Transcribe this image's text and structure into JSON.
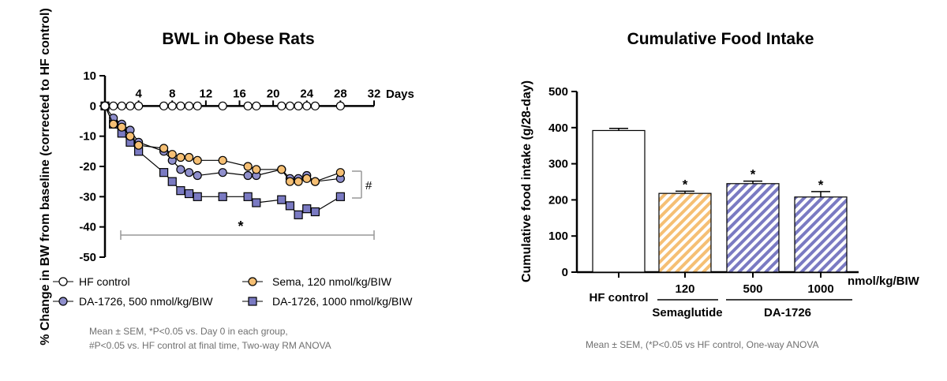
{
  "chart_data": [
    {
      "type": "line",
      "title": "BWL in Obese Rats",
      "ylabel": "% Change in BW from baseline (corrected to HF control)",
      "xlabel": "Days",
      "xlim": [
        0,
        32
      ],
      "ylim": [
        -50,
        10
      ],
      "x_ticks": [
        "4",
        "8",
        "12",
        "16",
        "20",
        "24",
        "28",
        "32"
      ],
      "x_tick_values": [
        4,
        8,
        12,
        16,
        20,
        24,
        28,
        32
      ],
      "y_ticks": [
        "10",
        "0",
        "-10",
        "-20",
        "-30",
        "-40",
        "-50"
      ],
      "y_tick_values": [
        10,
        0,
        -10,
        -20,
        -30,
        -40,
        -50
      ],
      "series": [
        {
          "name": "HF control",
          "marker": "circle",
          "color": "#ffffff",
          "x": [
            0,
            1,
            2,
            3,
            4,
            7,
            8,
            9,
            10,
            11,
            14,
            17,
            18,
            21,
            22,
            23,
            24,
            25,
            28
          ],
          "values": [
            0,
            0,
            0,
            0,
            0,
            0,
            0,
            0,
            0,
            0,
            0,
            0,
            0,
            0,
            0,
            0,
            0,
            0,
            0
          ]
        },
        {
          "name": "Sema, 120 nmol/kg/BIW",
          "marker": "circle",
          "color": "#f5bf74",
          "x": [
            0,
            1,
            2,
            3,
            4,
            7,
            8,
            9,
            10,
            11,
            14,
            17,
            18,
            21,
            22,
            23,
            24,
            25,
            28
          ],
          "values": [
            0,
            -6,
            -7,
            -10,
            -13,
            -14,
            -16,
            -17,
            -17,
            -18,
            -18,
            -20,
            -21,
            -21,
            -25,
            -25,
            -24,
            -25,
            -22
          ]
        },
        {
          "name": "DA-1726, 500 nmol/kg/BIW",
          "marker": "circle",
          "color": "#8f8fcc",
          "x": [
            0,
            1,
            2,
            3,
            4,
            7,
            8,
            9,
            10,
            11,
            14,
            17,
            18,
            21,
            22,
            23,
            24,
            25,
            28
          ],
          "values": [
            0,
            -4,
            -6,
            -8,
            -12,
            -15,
            -18,
            -21,
            -22,
            -23,
            -22,
            -23,
            -23,
            -21,
            -24,
            -24,
            -23,
            -25,
            -24
          ]
        },
        {
          "name": "DA-1726, 1000 nmol/kg/BIW",
          "marker": "square",
          "color": "#7a7ac2",
          "x": [
            0,
            1,
            2,
            3,
            4,
            7,
            8,
            9,
            10,
            11,
            14,
            17,
            18,
            21,
            22,
            23,
            24,
            25,
            28
          ],
          "values": [
            0,
            -6,
            -9,
            -12,
            -15,
            -22,
            -25,
            -28,
            -29,
            -30,
            -30,
            -30,
            -32,
            -31,
            -33,
            -36,
            -34,
            -35,
            -30
          ]
        }
      ],
      "annotations": [
        "*",
        "#"
      ],
      "footnote_lines": [
        "Mean ± SEM, *P<0.05 vs. Day 0 in each group,",
        "#P<0.05 vs. HF control at final time, Two-way RM ANOVA"
      ],
      "legend_position": "bottom",
      "grid": false
    },
    {
      "type": "bar",
      "title": "Cumulative Food Intake",
      "ylabel": "Cumulative food intake (g/28-day)",
      "ylim": [
        0,
        500
      ],
      "y_ticks": [
        "500",
        "400",
        "300",
        "200",
        "100",
        "0"
      ],
      "y_tick_values": [
        500,
        400,
        300,
        200,
        100,
        0
      ],
      "categories": [
        "HF control",
        "120",
        "500",
        "1000"
      ],
      "values": [
        392,
        218,
        245,
        208
      ],
      "errors": [
        6,
        6,
        7,
        15
      ],
      "bar_fill": [
        "white",
        "stripes-orange",
        "stripes-purple",
        "stripes-purple"
      ],
      "bar_star": [
        "",
        "*",
        "*",
        "*"
      ],
      "colors": {
        "orange": "#f5bf74",
        "purple": "#7a7ac2"
      },
      "dose_unit": "nmol/kg/BIW",
      "group_labels": [
        "Semaglutide",
        "DA-1726"
      ],
      "footnote": "Mean ± SEM, (*P<0.05 vs HF control,  One-way ANOVA",
      "grid": false
    }
  ]
}
